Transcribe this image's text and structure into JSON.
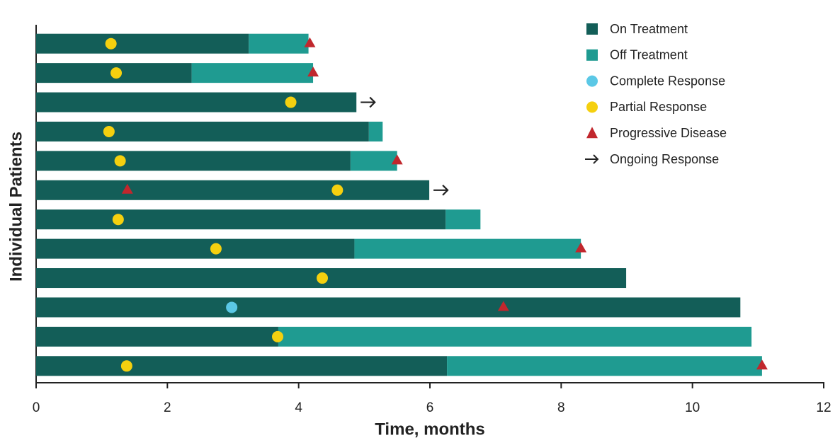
{
  "chart_data": {
    "type": "swimmer",
    "x_label": "Time, months",
    "y_label": "Individual Patients",
    "xlim": [
      0,
      12
    ],
    "xticks": [
      0,
      2,
      4,
      6,
      8,
      10,
      12
    ],
    "legend_position": "upper right",
    "categories": [
      null,
      null,
      null,
      null,
      null,
      null,
      null,
      null,
      null,
      null,
      null,
      null
    ],
    "series": [
      {
        "name": "On Treatment",
        "kind": "bar",
        "color": "#135e58",
        "values": [
          3.24,
          2.37,
          4.88,
          5.07,
          4.79,
          5.99,
          6.24,
          4.85,
          8.99,
          10.73,
          3.69,
          6.26
        ]
      },
      {
        "name": "Off Treatment",
        "kind": "bar",
        "color": "#1f9b91",
        "values": [
          0.91,
          1.85,
          null,
          0.21,
          0.71,
          null,
          0.53,
          3.45,
          null,
          null,
          7.21,
          4.8
        ]
      },
      {
        "name": "Complete Response",
        "kind": "circle",
        "color": "#5bc8e6",
        "values": [
          null,
          null,
          null,
          null,
          null,
          null,
          null,
          null,
          null,
          2.98,
          null,
          null
        ]
      },
      {
        "name": "Partial Response",
        "kind": "circle",
        "color": "#f5d00f",
        "values": [
          1.14,
          1.22,
          3.88,
          1.11,
          1.28,
          4.59,
          1.25,
          2.74,
          4.36,
          null,
          3.68,
          1.38
        ]
      },
      {
        "name": "Progressive Disease",
        "kind": "triangle",
        "color": "#c1272d",
        "values": [
          4.17,
          4.22,
          null,
          null,
          5.5,
          1.39,
          null,
          8.3,
          null,
          7.12,
          null,
          11.06
        ]
      },
      {
        "name": "Ongoing Response",
        "kind": "arrow",
        "color": "#222222",
        "values": [
          null,
          null,
          true,
          null,
          null,
          true,
          null,
          null,
          null,
          null,
          null,
          null
        ]
      }
    ]
  }
}
